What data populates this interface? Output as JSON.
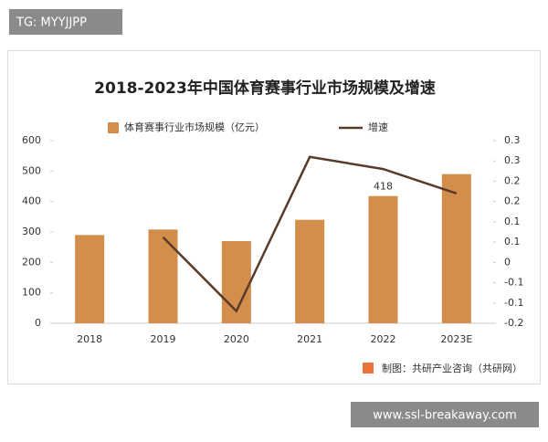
{
  "header": {
    "tag": "TG: MYYJJPP"
  },
  "chart_data": {
    "type": "bar",
    "title": "2018-2023年中国体育赛事行业市场规模及增速",
    "categories": [
      "2018",
      "2019",
      "2020",
      "2021",
      "2022",
      "2023E"
    ],
    "series": [
      {
        "name": "体育赛事行业市场规模（亿元）",
        "type": "bar",
        "color": "#d38e4c",
        "values": [
          290,
          308,
          270,
          340,
          418,
          490
        ],
        "value_labels": [
          null,
          null,
          null,
          null,
          "418",
          null
        ]
      },
      {
        "name": "增速",
        "type": "line",
        "axis": "y2",
        "color": "#5a3b2b",
        "values": [
          null,
          0.062,
          -0.12,
          0.26,
          0.23,
          0.17
        ]
      }
    ],
    "ylim": [
      0,
      600
    ],
    "yticks": [
      0,
      100,
      200,
      300,
      400,
      500,
      600
    ],
    "y2lim": [
      -0.15,
      0.3
    ],
    "y2ticks": [
      {
        "value": -0.15,
        "label": "-0.2"
      },
      {
        "value": -0.1,
        "label": "-0.1"
      },
      {
        "value": -0.05,
        "label": "-0.1"
      },
      0,
      {
        "value": 0.05,
        "label": "0.1"
      },
      0.1,
      {
        "value": 0.15,
        "label": "0.2"
      },
      0.2,
      {
        "value": 0.25,
        "label": "0.3"
      },
      0.3
    ],
    "legend": "top",
    "grid": false,
    "source": "制图：共研产业咨询（共研网）"
  },
  "footer": {
    "watermark": "www.ssl-breakaway.com"
  }
}
